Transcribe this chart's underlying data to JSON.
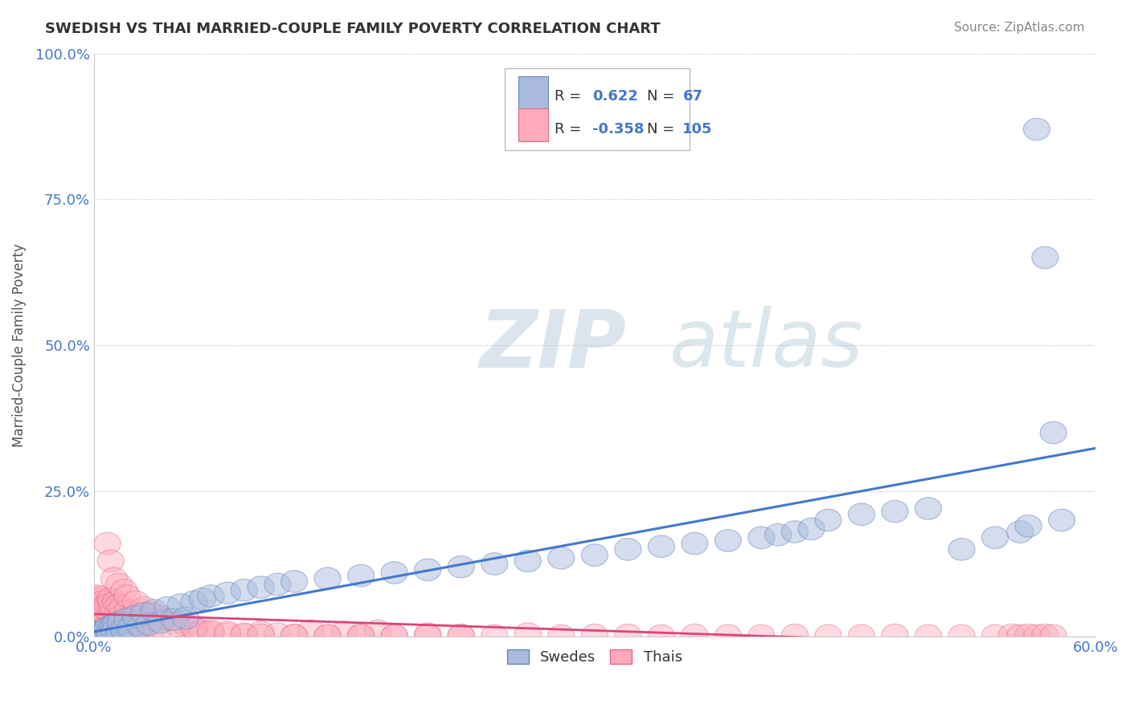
{
  "title": "SWEDISH VS THAI MARRIED-COUPLE FAMILY POVERTY CORRELATION CHART",
  "source": "Source: ZipAtlas.com",
  "ylabel": "Married-Couple Family Poverty",
  "xlabel": "",
  "xlim": [
    0.0,
    0.6
  ],
  "ylim": [
    0.0,
    1.0
  ],
  "xtick_labels": [
    "0.0%",
    "60.0%"
  ],
  "ytick_labels": [
    "0.0%",
    "25.0%",
    "50.0%",
    "75.0%",
    "100.0%"
  ],
  "yticks": [
    0.0,
    0.25,
    0.5,
    0.75,
    1.0
  ],
  "grid_color": "#bbbbcc",
  "blue_color": "#aabbdd",
  "pink_color": "#ffaabb",
  "blue_edge_color": "#6688bb",
  "pink_edge_color": "#dd6688",
  "blue_line_color": "#4477cc",
  "pink_line_color": "#dd4477",
  "R_blue": 0.622,
  "N_blue": 67,
  "R_pink": -0.358,
  "N_pink": 105,
  "watermark_zip": "ZIP",
  "watermark_atlas": "atlas",
  "legend_labels": [
    "Swedes",
    "Thais"
  ],
  "background_color": "#ffffff",
  "title_color": "#333333",
  "stat_value_color": "#4477cc",
  "tick_label_color": "#4477cc",
  "ylabel_color": "#555555",
  "source_color": "#888888",
  "blue_data_x": [
    0.002,
    0.003,
    0.003,
    0.004,
    0.005,
    0.005,
    0.006,
    0.007,
    0.007,
    0.008,
    0.009,
    0.01,
    0.011,
    0.012,
    0.013,
    0.015,
    0.016,
    0.018,
    0.02,
    0.022,
    0.025,
    0.028,
    0.03,
    0.033,
    0.036,
    0.04,
    0.044,
    0.048,
    0.052,
    0.055,
    0.06,
    0.065,
    0.07,
    0.08,
    0.09,
    0.1,
    0.11,
    0.12,
    0.14,
    0.16,
    0.18,
    0.2,
    0.22,
    0.24,
    0.26,
    0.28,
    0.3,
    0.32,
    0.34,
    0.36,
    0.38,
    0.4,
    0.41,
    0.42,
    0.43,
    0.44,
    0.46,
    0.48,
    0.5,
    0.52,
    0.54,
    0.555,
    0.56,
    0.565,
    0.57,
    0.575,
    0.58
  ],
  "blue_data_y": [
    0.005,
    0.003,
    0.008,
    0.002,
    0.01,
    0.006,
    0.004,
    0.012,
    0.007,
    0.015,
    0.008,
    0.005,
    0.018,
    0.01,
    0.022,
    0.008,
    0.025,
    0.012,
    0.03,
    0.015,
    0.035,
    0.018,
    0.04,
    0.022,
    0.045,
    0.025,
    0.05,
    0.03,
    0.055,
    0.032,
    0.06,
    0.065,
    0.07,
    0.075,
    0.08,
    0.085,
    0.09,
    0.095,
    0.1,
    0.105,
    0.11,
    0.115,
    0.12,
    0.125,
    0.13,
    0.135,
    0.14,
    0.15,
    0.155,
    0.16,
    0.165,
    0.17,
    0.175,
    0.18,
    0.185,
    0.2,
    0.21,
    0.215,
    0.22,
    0.15,
    0.17,
    0.18,
    0.19,
    0.87,
    0.65,
    0.35,
    0.2
  ],
  "pink_data_x": [
    0.001,
    0.001,
    0.002,
    0.002,
    0.002,
    0.003,
    0.003,
    0.003,
    0.004,
    0.004,
    0.004,
    0.005,
    0.005,
    0.005,
    0.006,
    0.006,
    0.007,
    0.007,
    0.008,
    0.008,
    0.009,
    0.01,
    0.01,
    0.011,
    0.012,
    0.013,
    0.014,
    0.015,
    0.016,
    0.017,
    0.018,
    0.02,
    0.022,
    0.024,
    0.026,
    0.028,
    0.03,
    0.032,
    0.034,
    0.036,
    0.038,
    0.04,
    0.045,
    0.05,
    0.055,
    0.06,
    0.065,
    0.07,
    0.08,
    0.09,
    0.1,
    0.11,
    0.12,
    0.13,
    0.14,
    0.15,
    0.16,
    0.17,
    0.18,
    0.2,
    0.22,
    0.24,
    0.26,
    0.28,
    0.3,
    0.32,
    0.34,
    0.36,
    0.38,
    0.4,
    0.42,
    0.44,
    0.46,
    0.48,
    0.5,
    0.52,
    0.54,
    0.55,
    0.555,
    0.56,
    0.565,
    0.57,
    0.575,
    0.008,
    0.01,
    0.012,
    0.015,
    0.018,
    0.02,
    0.025,
    0.03,
    0.035,
    0.04,
    0.05,
    0.06,
    0.07,
    0.08,
    0.09,
    0.1,
    0.12,
    0.14,
    0.16,
    0.18,
    0.2,
    0.22
  ],
  "pink_data_y": [
    0.04,
    0.06,
    0.035,
    0.05,
    0.07,
    0.03,
    0.055,
    0.065,
    0.025,
    0.045,
    0.068,
    0.02,
    0.042,
    0.06,
    0.015,
    0.052,
    0.012,
    0.048,
    0.01,
    0.055,
    0.008,
    0.055,
    0.065,
    0.05,
    0.045,
    0.06,
    0.04,
    0.055,
    0.035,
    0.05,
    0.03,
    0.045,
    0.025,
    0.04,
    0.02,
    0.045,
    0.015,
    0.04,
    0.01,
    0.038,
    0.005,
    0.035,
    0.03,
    0.025,
    0.02,
    0.015,
    0.01,
    0.008,
    0.005,
    0.003,
    0.008,
    0.005,
    0.003,
    0.01,
    0.002,
    0.008,
    0.003,
    0.01,
    0.002,
    0.005,
    0.003,
    0.002,
    0.005,
    0.002,
    0.003,
    0.003,
    0.002,
    0.003,
    0.002,
    0.002,
    0.003,
    0.002,
    0.002,
    0.003,
    0.002,
    0.002,
    0.002,
    0.003,
    0.002,
    0.003,
    0.002,
    0.003,
    0.002,
    0.16,
    0.13,
    0.1,
    0.09,
    0.08,
    0.07,
    0.06,
    0.05,
    0.04,
    0.03,
    0.02,
    0.015,
    0.01,
    0.008,
    0.005,
    0.003,
    0.002,
    0.002,
    0.002,
    0.002,
    0.002,
    0.002
  ]
}
